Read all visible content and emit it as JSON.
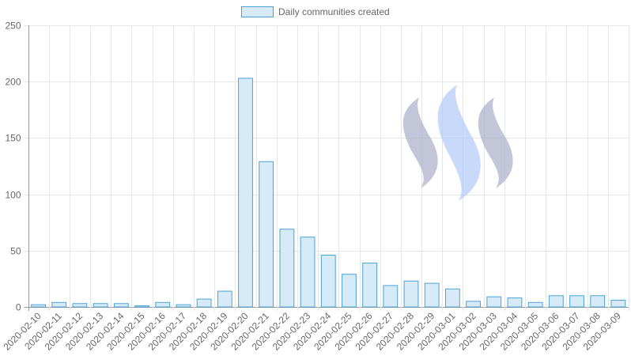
{
  "chart_data": {
    "type": "bar",
    "legend": {
      "label": "Daily communities created",
      "position": "top"
    },
    "categories": [
      "2020-02-10",
      "2020-02-11",
      "2020-02-12",
      "2020-02-13",
      "2020-02-14",
      "2020-02-15",
      "2020-02-16",
      "2020-02-17",
      "2020-02-18",
      "2020-02-19",
      "2020-02-20",
      "2020-02-21",
      "2020-02-22",
      "2020-02-23",
      "2020-02-24",
      "2020-02-25",
      "2020-02-26",
      "2020-02-27",
      "2020-02-28",
      "2020-02-29",
      "2020-03-01",
      "2020-03-02",
      "2020-03-03",
      "2020-03-04",
      "2020-03-05",
      "2020-03-06",
      "2020-03-07",
      "2020-03-08",
      "2020-03-09"
    ],
    "series": [
      {
        "name": "Daily communities created",
        "values": [
          2,
          4,
          3,
          3,
          3,
          1,
          4,
          2,
          7,
          14,
          203,
          129,
          69,
          62,
          46,
          29,
          39,
          19,
          23,
          21,
          16,
          5,
          9,
          8,
          4,
          10,
          10,
          10,
          6
        ]
      }
    ],
    "ylim": [
      0,
      250
    ],
    "yticks": [
      0,
      50,
      100,
      150,
      200,
      250
    ],
    "grid": true,
    "colors": {
      "bar_fill": "#d6eaf8",
      "bar_stroke": "#4aa3d8",
      "grid": "#e6e6e6",
      "axis": "#999999"
    },
    "watermark_icon": "steem-logo-icon"
  }
}
